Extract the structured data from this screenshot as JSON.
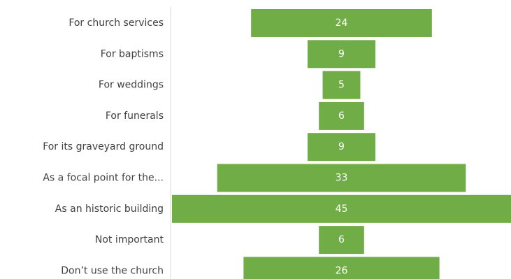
{
  "chart_data": {
    "type": "bar",
    "orientation": "horizontal",
    "layout": "centered funnel",
    "title": "",
    "xlabel": "",
    "ylabel": "",
    "categories": [
      "For church services",
      "For baptisms",
      "For weddings",
      "For funerals",
      "For its graveyard ground",
      "As a focal point for the...",
      "As an historic building",
      "Not important",
      "Don’t use the church"
    ],
    "values": [
      24,
      9,
      5,
      6,
      9,
      33,
      45,
      6,
      26
    ],
    "data_labels": [
      "24",
      "9",
      "5",
      "6",
      "9",
      "33",
      "45",
      "6",
      "26"
    ],
    "bar_color": "#70ad47",
    "label_color": "#ffffff",
    "grid": false,
    "legend": "none"
  }
}
